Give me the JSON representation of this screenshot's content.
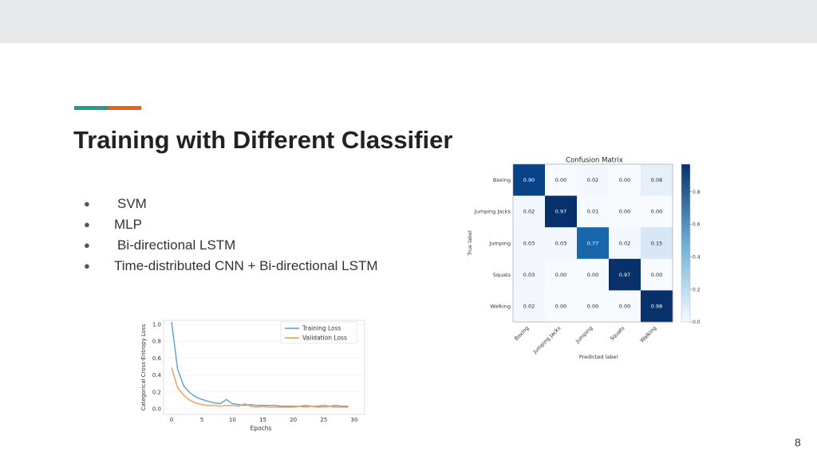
{
  "slide": {
    "title": "Training with Different Classifier",
    "page_number": "8",
    "bullet_glyph": "●",
    "bullets": [
      "SVM",
      "MLP",
      "Bi-directional LSTM",
      "Time-distributed CNN + Bi-directional LSTM"
    ]
  },
  "colors": {
    "accent_teal": "#1f9c8c",
    "accent_orange": "#e8611c",
    "cm_low": "#f7fbff",
    "cm_high": "#08306b",
    "training_line": "#5a9fd4",
    "validation_line": "#f59a4e"
  },
  "chart_data": [
    {
      "type": "heatmap",
      "title": "Confusion Matrix",
      "xlabel": "Predicted label",
      "ylabel": "True label",
      "categories": [
        "Boxing",
        "Jumping Jacks",
        "Jumping",
        "Squats",
        "Walking"
      ],
      "matrix": [
        [
          0.9,
          0.0,
          0.02,
          0.0,
          0.08
        ],
        [
          0.02,
          0.97,
          0.01,
          0.0,
          0.0
        ],
        [
          0.03,
          0.03,
          0.77,
          0.02,
          0.15
        ],
        [
          0.03,
          0.0,
          0.0,
          0.97,
          0.0
        ],
        [
          0.02,
          0.0,
          0.0,
          0.0,
          0.98
        ]
      ],
      "cell_labels": [
        [
          "0.90",
          "0.00",
          "0.02",
          "0.00",
          "0.08"
        ],
        [
          "0.02",
          "0.97",
          "0.01",
          "0.00",
          "0.00"
        ],
        [
          "0.03",
          "0.03",
          "0.77",
          "0.02",
          "0.15"
        ],
        [
          "0.03",
          "0.00",
          "0.00",
          "0.97",
          "0.00"
        ],
        [
          "0.02",
          "0.00",
          "0.00",
          "0.00",
          "0.98"
        ]
      ],
      "colorbar": {
        "range": [
          0,
          0.97
        ],
        "ticks": [
          "0.0",
          "0.2",
          "0.4",
          "0.6",
          "0.8"
        ]
      }
    },
    {
      "type": "line",
      "xlabel": "Epochs",
      "ylabel": "Categorical Cross-Entropy Loss",
      "xlim": [
        0,
        30
      ],
      "ylim": [
        0,
        1.05
      ],
      "x_ticks": [
        "0",
        "5",
        "10",
        "15",
        "20",
        "25",
        "30"
      ],
      "y_ticks": [
        "0.0",
        "0.2",
        "0.4",
        "0.6",
        "0.8",
        "1.0"
      ],
      "legend": "top-right",
      "grid": true,
      "series": [
        {
          "name": "Training Loss",
          "x": [
            0,
            1,
            2,
            3,
            4,
            5,
            6,
            7,
            8,
            9,
            10,
            11,
            12,
            13,
            14,
            15,
            16,
            17,
            18,
            19,
            20,
            21,
            22,
            23,
            24,
            25,
            26,
            27,
            28,
            29
          ],
          "values": [
            1.03,
            0.47,
            0.27,
            0.19,
            0.14,
            0.11,
            0.09,
            0.07,
            0.06,
            0.11,
            0.06,
            0.05,
            0.04,
            0.05,
            0.04,
            0.04,
            0.04,
            0.04,
            0.03,
            0.03,
            0.03,
            0.03,
            0.04,
            0.03,
            0.03,
            0.04,
            0.03,
            0.04,
            0.03,
            0.03
          ]
        },
        {
          "name": "Validation Loss",
          "x": [
            0,
            1,
            2,
            3,
            4,
            5,
            6,
            7,
            8,
            9,
            10,
            11,
            12,
            13,
            14,
            15,
            16,
            17,
            18,
            19,
            20,
            21,
            22,
            23,
            24,
            25,
            26,
            27,
            28,
            29
          ],
          "values": [
            0.49,
            0.25,
            0.16,
            0.1,
            0.07,
            0.05,
            0.04,
            0.04,
            0.03,
            0.04,
            0.04,
            0.03,
            0.06,
            0.03,
            0.02,
            0.03,
            0.02,
            0.02,
            0.02,
            0.02,
            0.02,
            0.03,
            0.02,
            0.03,
            0.02,
            0.02,
            0.03,
            0.02,
            0.02,
            0.02
          ]
        }
      ]
    }
  ]
}
